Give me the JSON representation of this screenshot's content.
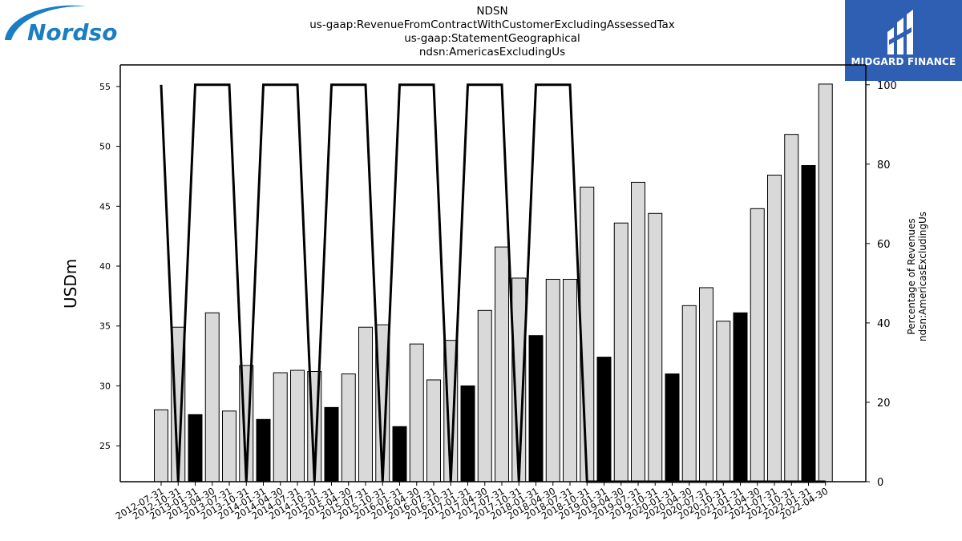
{
  "header": {
    "title_lines": [
      "NDSN",
      "us-gaap:RevenueFromContractWithCustomerExcludingAssessedTax",
      "us-gaap:StatementGeographical",
      "ndsn:AmericasExcludingUs"
    ]
  },
  "logos": {
    "left": "Nordson",
    "right": "MIDGARD FINANCE"
  },
  "colors": {
    "bar_normal": "#d9d9d9",
    "bar_highlight": "#000000",
    "line": "#000000",
    "logo_blue": "#1a7ec4",
    "brand_panel": "#2f5fb3"
  },
  "chart_data": {
    "type": "bar",
    "categories": [
      "2012-07-31",
      "2012-10-31",
      "2013-01-31",
      "2013-04-30",
      "2013-07-31",
      "2013-10-31",
      "2014-01-31",
      "2014-04-30",
      "2014-07-31",
      "2014-10-31",
      "2015-01-31",
      "2015-04-30",
      "2015-07-31",
      "2015-10-31",
      "2016-01-31",
      "2016-04-30",
      "2016-07-31",
      "2016-10-31",
      "2017-01-31",
      "2017-04-30",
      "2017-07-31",
      "2017-10-31",
      "2018-01-31",
      "2018-04-30",
      "2018-07-31",
      "2018-10-31",
      "2019-01-31",
      "2019-04-30",
      "2019-07-31",
      "2019-10-31",
      "2020-01-31",
      "2020-04-30",
      "2020-07-31",
      "2020-10-31",
      "2021-01-31",
      "2021-04-30",
      "2021-07-31",
      "2021-10-31",
      "2022-01-31",
      "2022-04-30"
    ],
    "series": [
      {
        "values": [
          28.0,
          34.9,
          27.6,
          36.1,
          27.9,
          31.7,
          27.2,
          31.1,
          31.3,
          31.2,
          28.2,
          31.0,
          34.9,
          35.1,
          26.6,
          33.5,
          30.5,
          33.8,
          30.0,
          36.3,
          41.6,
          39.0,
          34.2,
          38.9,
          38.9,
          46.6,
          32.4,
          43.6,
          47.0,
          44.4,
          31.0,
          36.7,
          38.2,
          35.4,
          36.1,
          44.8,
          47.6,
          51.0,
          48.4,
          55.2
        ],
        "highlight": [
          false,
          false,
          true,
          false,
          false,
          false,
          true,
          false,
          false,
          false,
          true,
          false,
          false,
          false,
          true,
          false,
          false,
          false,
          true,
          false,
          false,
          false,
          true,
          false,
          false,
          false,
          true,
          false,
          false,
          false,
          true,
          false,
          false,
          false,
          true,
          false,
          false,
          false,
          true,
          false
        ]
      },
      {
        "axis": "right",
        "values": [
          100,
          0,
          100,
          100,
          100,
          0,
          100,
          100,
          100,
          0,
          100,
          100,
          100,
          0,
          100,
          100,
          100,
          0,
          100,
          100,
          100,
          0,
          100,
          100,
          100,
          0,
          0,
          0,
          0,
          0,
          0,
          0,
          0,
          0,
          0,
          0,
          0,
          0,
          0,
          0
        ]
      }
    ],
    "ylabel": "USDm",
    "ylabel_right_lines": [
      "Percentage of Revenues",
      "ndsn:AmericasExcludingUs"
    ],
    "ylim": [
      22,
      56.8
    ],
    "ylim_right": [
      0,
      105
    ],
    "yticks": [
      25,
      30,
      35,
      40,
      45,
      50,
      55
    ],
    "yticks_right": [
      0,
      20,
      40,
      60,
      80,
      100
    ],
    "grid": false,
    "xtick_rotation": 30
  }
}
